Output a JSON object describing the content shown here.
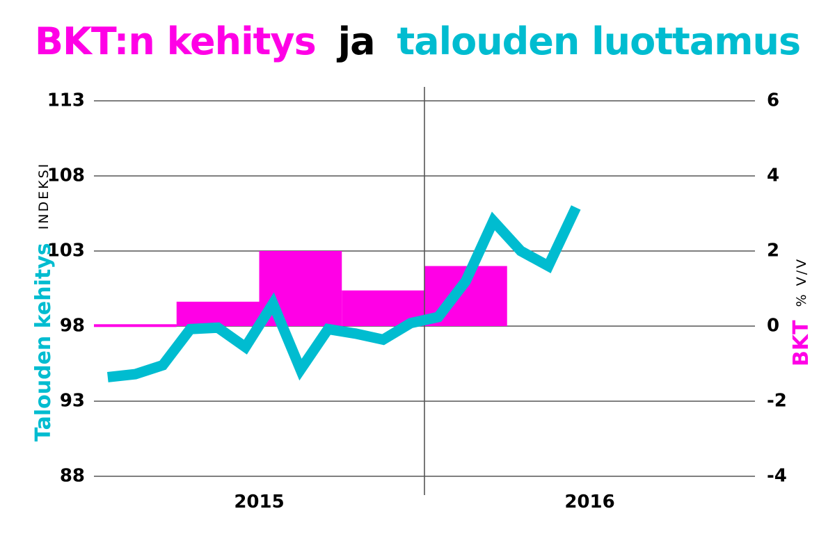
{
  "colors": {
    "gdp": "#ff00e6",
    "confidence": "#00bcd0",
    "text": "#000000",
    "grid": "#555555"
  },
  "title": {
    "part1": "BKT:n kehitys",
    "part2": "ja",
    "part3": "talouden luottamus"
  },
  "left_axis": {
    "label": "Talouden kehitys",
    "unit": "INDEKSI"
  },
  "right_axis": {
    "label": "BKT",
    "unit": "% V/V"
  },
  "chart_data": {
    "type": "bar+line",
    "title": "BKT:n kehitys ja talouden luottamus",
    "years": [
      "2015",
      "2016"
    ],
    "y_left": {
      "label": "Talouden kehitys",
      "unit": "INDEKSI",
      "lim": [
        88,
        113
      ],
      "ticks": [
        88,
        93,
        98,
        103,
        108,
        113
      ]
    },
    "y_right": {
      "label": "BKT",
      "unit": "% V/V",
      "lim": [
        -4,
        6
      ],
      "ticks": [
        -4,
        -2,
        0,
        2,
        4,
        6
      ]
    },
    "x_months": {
      "lim": [
        0.5,
        24.5
      ],
      "note": "monthly positions, Jan 2015 = 1"
    },
    "gdp_quarters": [
      {
        "quarter": "2015 Q1",
        "value": 0.05
      },
      {
        "quarter": "2015 Q2",
        "value": 0.65
      },
      {
        "quarter": "2015 Q3",
        "value": 2.0
      },
      {
        "quarter": "2015 Q4",
        "value": 0.95
      },
      {
        "quarter": "2016 Q1",
        "value": 1.6
      }
    ],
    "confidence": [
      {
        "x": 1,
        "y": 94.6
      },
      {
        "x": 2,
        "y": 94.8
      },
      {
        "x": 3,
        "y": 95.4
      },
      {
        "x": 4,
        "y": 97.8
      },
      {
        "x": 5,
        "y": 97.9
      },
      {
        "x": 6,
        "y": 96.6
      },
      {
        "x": 7,
        "y": 99.5
      },
      {
        "x": 8,
        "y": 95.1
      },
      {
        "x": 9,
        "y": 97.8
      },
      {
        "x": 10,
        "y": 97.5
      },
      {
        "x": 11,
        "y": 97.1
      },
      {
        "x": 12,
        "y": 98.2
      },
      {
        "x": 13,
        "y": 98.6
      },
      {
        "x": 14,
        "y": 101.0
      },
      {
        "x": 15,
        "y": 105.0
      },
      {
        "x": 16,
        "y": 103.0
      },
      {
        "x": 17,
        "y": 102.0
      },
      {
        "x": 18,
        "y": 105.9
      }
    ]
  }
}
